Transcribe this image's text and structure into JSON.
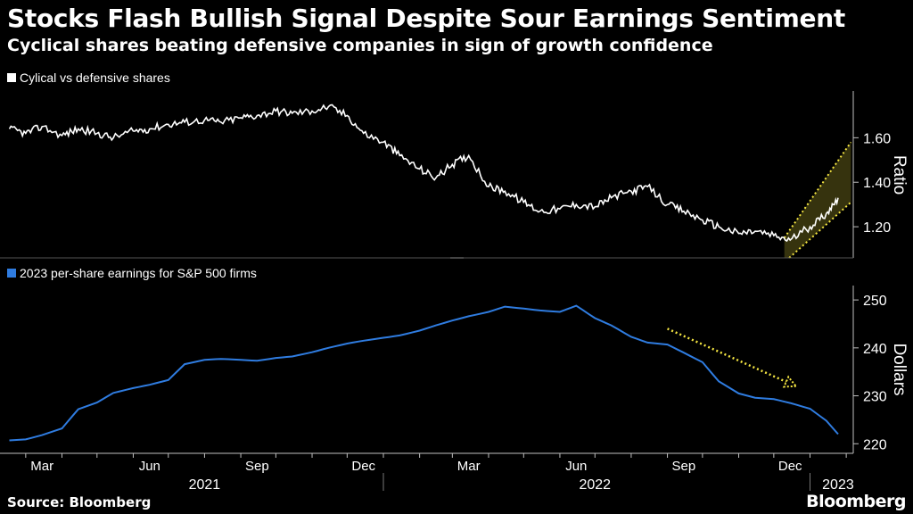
{
  "header": {
    "title": "Stocks Flash Bullish Signal Despite Sour Earnings Sentiment",
    "subtitle": "Cyclical shares beating defensive companies in sign of growth confidence"
  },
  "footer": {
    "source": "Source: Bloomberg",
    "brand": "Bloomberg"
  },
  "colors": {
    "background": "#000000",
    "ratio_line": "#ffffff",
    "earnings_line": "#2f7ce0",
    "highlight": "#f5e642",
    "axis": "#bfbfbf"
  },
  "chart_data": [
    {
      "type": "line",
      "legend": "Cylical vs defensive shares",
      "ylabel": "Ratio",
      "ylim": [
        1.06,
        1.81
      ],
      "yticks": [
        1.2,
        1.4,
        1.6
      ],
      "ytick_labels": [
        "1.20",
        "1.40",
        "1.60"
      ],
      "x": [
        "2021-02-15",
        "2021-03-01",
        "2021-03-15",
        "2021-04-01",
        "2021-04-15",
        "2021-05-01",
        "2021-05-15",
        "2021-06-01",
        "2021-06-15",
        "2021-07-01",
        "2021-07-15",
        "2021-08-01",
        "2021-08-15",
        "2021-09-01",
        "2021-09-15",
        "2021-10-01",
        "2021-10-15",
        "2021-11-01",
        "2021-11-15",
        "2021-12-01",
        "2021-12-15",
        "2022-01-01",
        "2022-01-15",
        "2022-02-01",
        "2022-02-15",
        "2022-03-01",
        "2022-03-15",
        "2022-04-01",
        "2022-04-15",
        "2022-05-01",
        "2022-05-15",
        "2022-06-01",
        "2022-06-15",
        "2022-07-01",
        "2022-07-15",
        "2022-08-01",
        "2022-08-15",
        "2022-09-01",
        "2022-09-15",
        "2022-10-01",
        "2022-10-15",
        "2022-11-01",
        "2022-11-15",
        "2022-12-01",
        "2022-12-15",
        "2023-01-01",
        "2023-01-15",
        "2023-01-25"
      ],
      "values": [
        1.64,
        1.62,
        1.65,
        1.61,
        1.64,
        1.62,
        1.6,
        1.63,
        1.64,
        1.66,
        1.67,
        1.68,
        1.67,
        1.69,
        1.7,
        1.72,
        1.71,
        1.72,
        1.74,
        1.7,
        1.62,
        1.58,
        1.52,
        1.46,
        1.42,
        1.48,
        1.52,
        1.38,
        1.36,
        1.31,
        1.27,
        1.28,
        1.3,
        1.29,
        1.33,
        1.36,
        1.38,
        1.3,
        1.27,
        1.23,
        1.2,
        1.17,
        1.18,
        1.16,
        1.14,
        1.2,
        1.26,
        1.33
      ],
      "annotation": {
        "type": "channel",
        "from": "2022-12-10",
        "to": "2023-02-05",
        "lower_start": 1.04,
        "lower_end": 1.31,
        "upper_start": 1.15,
        "upper_end": 1.58
      }
    },
    {
      "type": "line",
      "legend": "2023 per-share earnings for S&P 500 firms",
      "ylabel": "Dollars",
      "ylim": [
        218,
        253
      ],
      "yticks": [
        220,
        230,
        240,
        250
      ],
      "ytick_labels": [
        "220",
        "230",
        "240",
        "250"
      ],
      "x": [
        "2021-02-15",
        "2021-03-01",
        "2021-03-15",
        "2021-04-01",
        "2021-04-15",
        "2021-05-01",
        "2021-05-15",
        "2021-06-01",
        "2021-06-15",
        "2021-07-01",
        "2021-07-15",
        "2021-08-01",
        "2021-08-15",
        "2021-09-01",
        "2021-09-15",
        "2021-10-01",
        "2021-10-15",
        "2021-11-01",
        "2021-11-15",
        "2021-12-01",
        "2021-12-15",
        "2022-01-01",
        "2022-01-15",
        "2022-02-01",
        "2022-02-15",
        "2022-03-01",
        "2022-03-15",
        "2022-04-01",
        "2022-04-15",
        "2022-05-01",
        "2022-05-15",
        "2022-06-01",
        "2022-06-15",
        "2022-07-01",
        "2022-07-15",
        "2022-08-01",
        "2022-08-15",
        "2022-09-01",
        "2022-09-15",
        "2022-10-01",
        "2022-10-15",
        "2022-11-01",
        "2022-11-15",
        "2022-12-01",
        "2022-12-15",
        "2023-01-01",
        "2023-01-15",
        "2023-01-25"
      ],
      "values": [
        220.7,
        220.9,
        221.8,
        223.2,
        227.2,
        228.6,
        230.6,
        231.6,
        232.3,
        233.3,
        236.6,
        237.5,
        237.7,
        237.5,
        237.3,
        237.9,
        238.2,
        239.1,
        240.0,
        240.9,
        241.5,
        242.1,
        242.6,
        243.6,
        244.7,
        245.7,
        246.6,
        247.5,
        248.6,
        248.2,
        247.8,
        247.5,
        248.8,
        246.2,
        244.7,
        242.3,
        241.1,
        240.7,
        239.0,
        237.0,
        233.0,
        230.5,
        229.6,
        229.3,
        228.5,
        227.3,
        224.8,
        222.0
      ],
      "annotation": {
        "type": "arrow",
        "from": "2022-09-01",
        "from_value": 244.0,
        "to": "2022-12-20",
        "to_value": 232.0
      }
    }
  ],
  "x_axis": {
    "months": [
      "Mar",
      "Jun",
      "Sep",
      "Dec",
      "Mar",
      "Jun",
      "Sep",
      "Dec"
    ],
    "years": [
      "2021",
      "2022",
      "2023"
    ]
  }
}
